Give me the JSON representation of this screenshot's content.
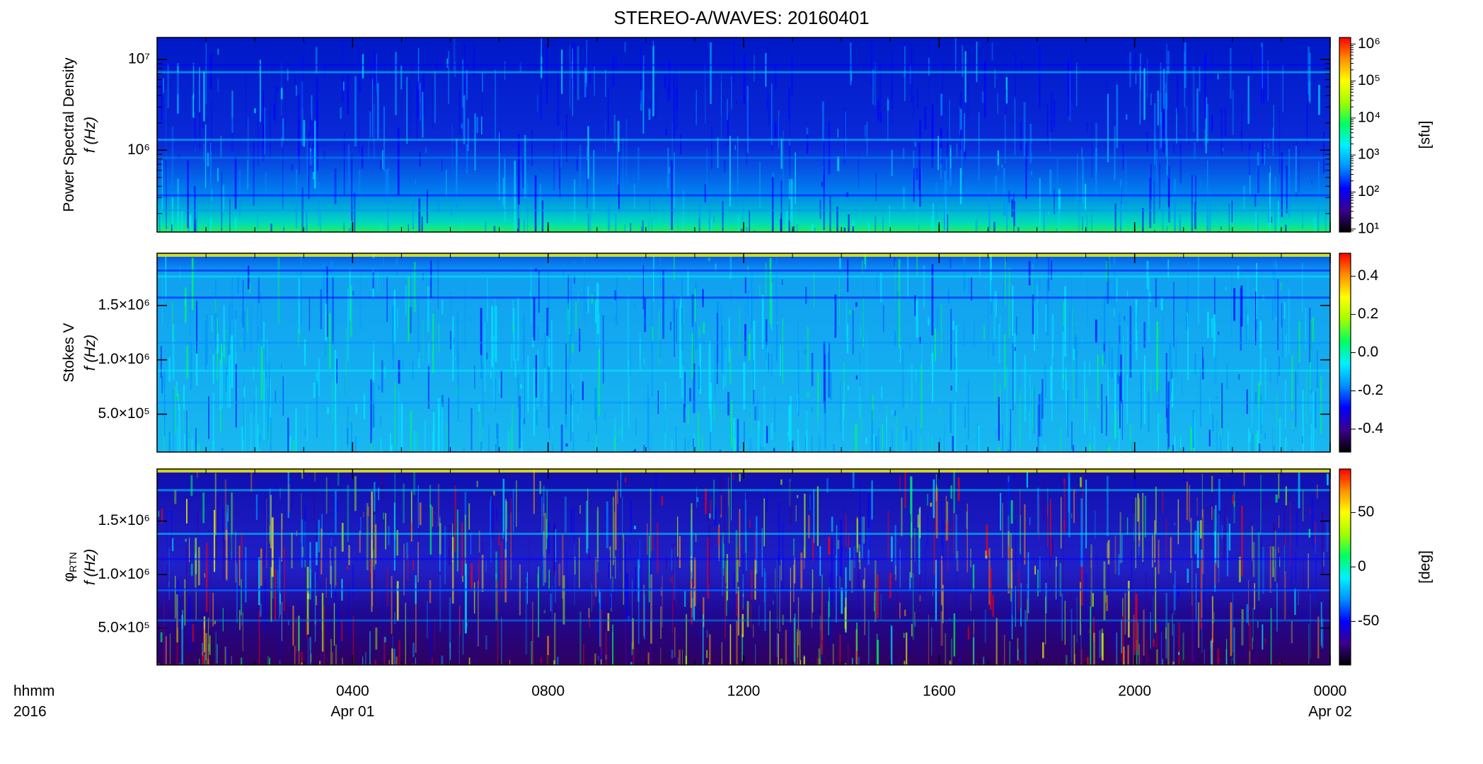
{
  "chart_data": [
    {
      "type": "spectrogram",
      "title": "STEREO-A/WAVES: 20160401",
      "ylabel_lines": [
        "Power Spectral Density",
        "f (Hz)"
      ],
      "yscale": "log",
      "ylim": [
        125000,
        17500000
      ],
      "yticks": [
        {
          "value": 1000000,
          "label": "10⁶"
        },
        {
          "value": 10000000,
          "label": "10⁷"
        }
      ],
      "xlim": [
        0,
        24
      ],
      "xticks": [
        4,
        8,
        12,
        16,
        20,
        24
      ],
      "cscale": "log",
      "clim": [
        8.3,
        1500000
      ],
      "cticks": [
        {
          "value": 10,
          "label": "10¹"
        },
        {
          "value": 100,
          "label": "10²"
        },
        {
          "value": 1000,
          "label": "10³"
        },
        {
          "value": 10000,
          "label": "10⁴"
        },
        {
          "value": 100000,
          "label": "10⁵"
        },
        {
          "value": 1000000,
          "label": "10⁶"
        }
      ],
      "clabel": "[sfu]",
      "colormap": [
        "#000000",
        "#3c0090",
        "#0000ff",
        "#0090ff",
        "#00f0ff",
        "#00ff60",
        "#a0ff00",
        "#ffff00",
        "#ff9000",
        "#ff0000"
      ]
    },
    {
      "type": "spectrogram",
      "ylabel_lines": [
        "Stokes V",
        "f (Hz)"
      ],
      "yscale": "linear",
      "ylim": [
        152000,
        1980000
      ],
      "yticks": [
        {
          "value": 500000,
          "label": "5.0×10⁵"
        },
        {
          "value": 1000000,
          "label": "1.0×10⁶"
        },
        {
          "value": 1500000,
          "label": "1.5×10⁶"
        }
      ],
      "xlim": [
        0,
        24
      ],
      "xticks": [
        4,
        8,
        12,
        16,
        20,
        24
      ],
      "cscale": "linear",
      "clim": [
        -0.52,
        0.52
      ],
      "cticks": [
        {
          "value": -0.4,
          "label": "-0.4"
        },
        {
          "value": -0.2,
          "label": "-0.2"
        },
        {
          "value": 0,
          "label": "0.0"
        },
        {
          "value": 0.2,
          "label": "0.2"
        },
        {
          "value": 0.4,
          "label": "0.4"
        }
      ],
      "colormap": [
        "#000000",
        "#3c0090",
        "#0000ff",
        "#0090ff",
        "#00f0ff",
        "#00ff60",
        "#a0ff00",
        "#ffff00",
        "#ff9000",
        "#ff0000"
      ]
    },
    {
      "type": "spectrogram",
      "ylabel_lines": [
        "φ",
        "f (Hz)"
      ],
      "ylabel_subscript": "RTN",
      "yscale": "linear",
      "ylim": [
        155000,
        1987000
      ],
      "yticks": [
        {
          "value": 500000,
          "label": "5.0×10⁵"
        },
        {
          "value": 1000000,
          "label": "1.0×10⁶"
        },
        {
          "value": 1500000,
          "label": "1.5×10⁶"
        }
      ],
      "xlim": [
        0,
        24
      ],
      "xticks": [
        {
          "value": 4,
          "label": "0400"
        },
        {
          "value": 8,
          "label": "0800"
        },
        {
          "value": 12,
          "label": "1200"
        },
        {
          "value": 16,
          "label": "1600"
        },
        {
          "value": 20,
          "label": "2000"
        },
        {
          "value": 24,
          "label": "0000"
        }
      ],
      "date_labels": [
        {
          "value": 4,
          "label": "Apr 01"
        },
        {
          "value": 24,
          "label": "Apr 02"
        }
      ],
      "x_label_lines": [
        "hhmm",
        "2016"
      ],
      "cscale": "linear",
      "clim": [
        -90,
        90
      ],
      "cticks": [
        -50,
        0,
        50
      ],
      "clabel": "[deg]",
      "colormap": [
        "#000000",
        "#3c0090",
        "#0000ff",
        "#0090ff",
        "#00f0ff",
        "#00ff60",
        "#a0ff00",
        "#ffff00",
        "#ff9000",
        "#ff0000"
      ]
    }
  ]
}
